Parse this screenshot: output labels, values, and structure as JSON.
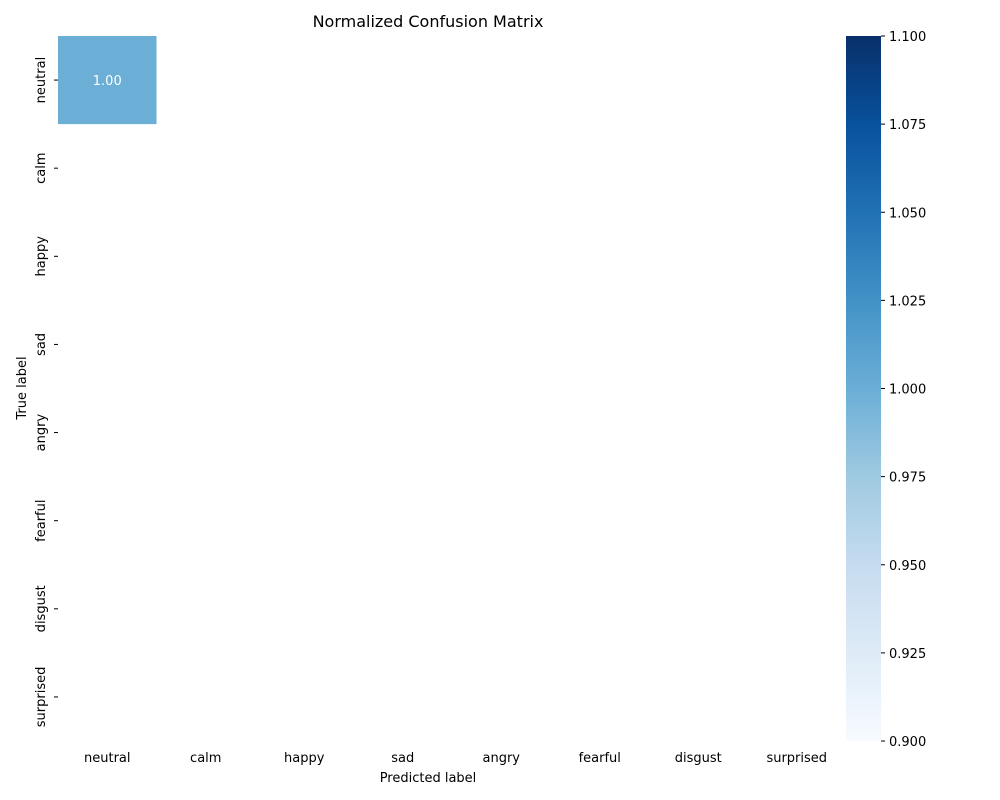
{
  "chart_data": {
    "type": "heatmap",
    "title": "Normalized Confusion Matrix",
    "xlabel": "Predicted label",
    "ylabel": "True label",
    "x_categories": [
      "neutral",
      "calm",
      "happy",
      "sad",
      "angry",
      "fearful",
      "disgust",
      "surprised"
    ],
    "y_categories": [
      "neutral",
      "calm",
      "happy",
      "sad",
      "angry",
      "fearful",
      "disgust",
      "surprised"
    ],
    "matrix": [
      [
        1.0,
        null,
        null,
        null,
        null,
        null,
        null,
        null
      ],
      [
        null,
        null,
        null,
        null,
        null,
        null,
        null,
        null
      ],
      [
        null,
        null,
        null,
        null,
        null,
        null,
        null,
        null
      ],
      [
        null,
        null,
        null,
        null,
        null,
        null,
        null,
        null
      ],
      [
        null,
        null,
        null,
        null,
        null,
        null,
        null,
        null
      ],
      [
        null,
        null,
        null,
        null,
        null,
        null,
        null,
        null
      ],
      [
        null,
        null,
        null,
        null,
        null,
        null,
        null,
        null
      ],
      [
        null,
        null,
        null,
        null,
        null,
        null,
        null,
        null
      ]
    ],
    "cell_labels": [
      [
        "1.00",
        "",
        "",
        "",
        "",
        "",
        "",
        ""
      ],
      [
        "",
        "",
        "",
        "",
        "",
        "",
        "",
        ""
      ],
      [
        "",
        "",
        "",
        "",
        "",
        "",
        "",
        ""
      ],
      [
        "",
        "",
        "",
        "",
        "",
        "",
        "",
        ""
      ],
      [
        "",
        "",
        "",
        "",
        "",
        "",
        "",
        ""
      ],
      [
        "",
        "",
        "",
        "",
        "",
        "",
        "",
        ""
      ],
      [
        "",
        "",
        "",
        "",
        "",
        "",
        "",
        ""
      ],
      [
        "",
        "",
        "",
        "",
        "",
        "",
        "",
        ""
      ]
    ],
    "colormap": "Blues",
    "color_low": "#f7fbff",
    "color_high": "#08306b",
    "colorbar": {
      "vmin": 0.9,
      "vmax": 1.1,
      "ticks": [
        0.9,
        0.925,
        0.95,
        0.975,
        1.0,
        1.025,
        1.05,
        1.075,
        1.1
      ],
      "tick_labels": [
        "0.900",
        "0.925",
        "0.950",
        "0.975",
        "1.000",
        "1.025",
        "1.050",
        "1.075",
        "1.100"
      ],
      "position": "right"
    },
    "grid": false
  }
}
